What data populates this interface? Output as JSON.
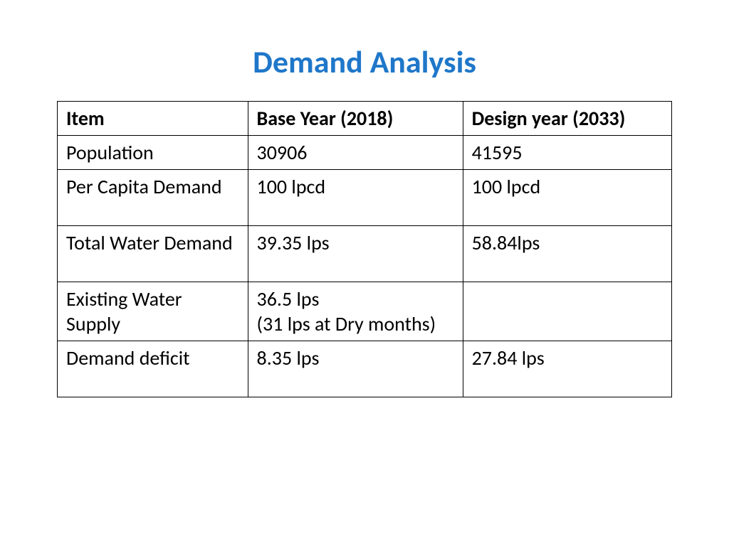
{
  "title": "Demand Analysis",
  "title_color": "#1f77c9",
  "background_color": "#ffffff",
  "border_color": "#000000",
  "font_family": "Calibri",
  "title_fontsize": 44,
  "cell_fontsize": 28,
  "table": {
    "columns": [
      "Item",
      "Base Year (2018)",
      "Design year (2033)"
    ],
    "column_widths_pct": [
      31,
      35,
      34
    ],
    "rows": [
      [
        "Population",
        "30906",
        "41595"
      ],
      [
        "Per Capita Demand",
        "100 lpcd",
        "100 lpcd"
      ],
      [
        "Total Water Demand",
        "39.35 lps",
        "58.84lps"
      ],
      [
        "Existing Water Supply",
        "36.5  lps\n(31 lps at Dry months)",
        ""
      ],
      [
        "Demand deficit",
        "8.35 lps",
        "27.84 lps"
      ]
    ],
    "tall_row_indices": [
      1,
      2,
      4
    ]
  }
}
